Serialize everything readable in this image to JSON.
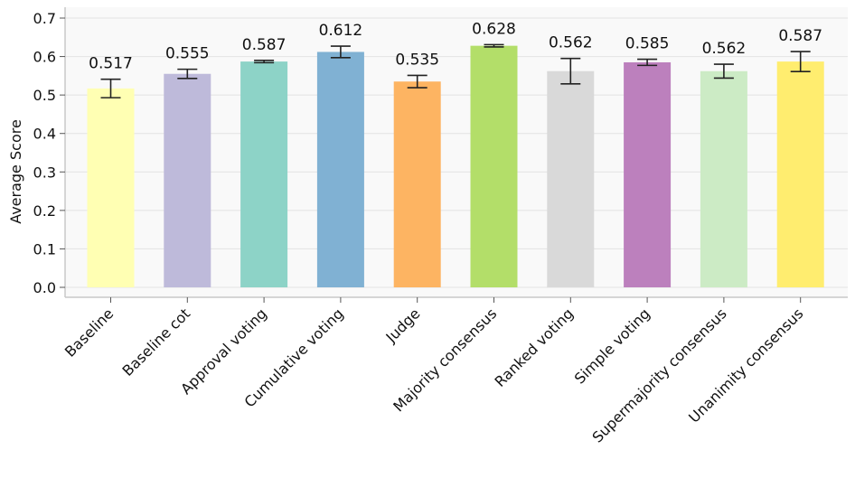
{
  "chart_data": {
    "type": "bar",
    "title": "",
    "xlabel": "",
    "ylabel": "Average Score",
    "ylim": [
      0,
      0.7
    ],
    "yticks": [
      0.0,
      0.1,
      0.2,
      0.3,
      0.4,
      0.5,
      0.6,
      0.7
    ],
    "ytick_labels": [
      "0.0",
      "0.1",
      "0.2",
      "0.3",
      "0.4",
      "0.5",
      "0.6",
      "0.7"
    ],
    "grid": "horizontal",
    "categories": [
      "Baseline",
      "Baseline cot",
      "Approval voting",
      "Cumulative voting",
      "Judge",
      "Majority consensus",
      "Ranked voting",
      "Simple voting",
      "Supermajority consensus",
      "Unanimity consensus"
    ],
    "values": [
      0.517,
      0.555,
      0.587,
      0.612,
      0.535,
      0.628,
      0.562,
      0.585,
      0.562,
      0.587
    ],
    "value_labels": [
      "0.517",
      "0.555",
      "0.587",
      "0.612",
      "0.535",
      "0.628",
      "0.562",
      "0.585",
      "0.562",
      "0.587"
    ],
    "errors": [
      0.024,
      0.012,
      0.003,
      0.015,
      0.016,
      0.003,
      0.033,
      0.008,
      0.018,
      0.026
    ],
    "colors": [
      "#ffffb3",
      "#bebada",
      "#8dd3c7",
      "#80b1d3",
      "#fdb462",
      "#b3de69",
      "#d9d9d9",
      "#bc80bd",
      "#ccebc5",
      "#ffed6f"
    ]
  }
}
